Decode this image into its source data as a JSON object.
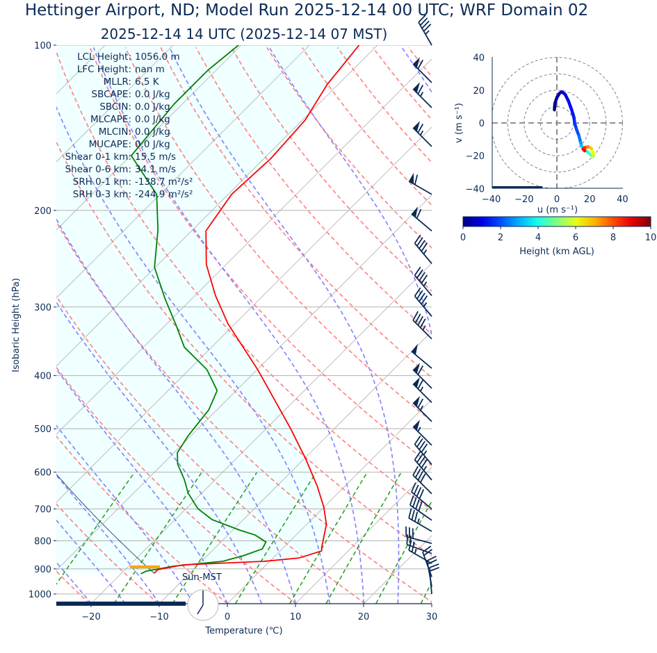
{
  "title": "Hettinger Airport, ND; Model Run 2025-12-14 00 UTC; WRF Domain 02",
  "subtitle": "2025-12-14 14 UTC  (2025-12-14 07 MST)",
  "colors": {
    "text": "#0b2a55",
    "temperature": "#ff0000",
    "dewpoint": "#008000",
    "dry_adiabat": "#ff7f7f",
    "moist_adiabat": "#7f7fff",
    "mixing_ratio": "#2ca02c",
    "fill": "#f0ffff",
    "lcl_marker": "#ffa500",
    "barb": "#0b2a55"
  },
  "stats": [
    {
      "label": "LCL Height:",
      "value": "1056.0 m"
    },
    {
      "label": "LFC Height:",
      "value": "nan m"
    },
    {
      "label": "MLLR:",
      "value": "6.5 K"
    },
    {
      "label": "SBCAPE:",
      "value": "0.0 J/kg"
    },
    {
      "label": "SBCIN:",
      "value": "0.0 J/kg"
    },
    {
      "label": "MLCAPE:",
      "value": "0.0 J/kg"
    },
    {
      "label": "MLCIN:",
      "value": "0.0 J/kg"
    },
    {
      "label": "MUCAPE:",
      "value": "0.0 J/kg"
    },
    {
      "label": "Shear 0-1 km:",
      "value": "15.5 m/s"
    },
    {
      "label": "Shear 0-6 km:",
      "value": "34.1 m/s"
    },
    {
      "label": "SRH 0-1 km:",
      "value": "-138.7 m²/s²"
    },
    {
      "label": "SRH 0-3 km:",
      "value": "-244.9 m²/s²"
    }
  ],
  "clock_label": "Sun-MST",
  "clock_time": "07:00",
  "chart_data": [
    {
      "type": "line",
      "name": "skew-t",
      "xlabel": "Temperature (℃)",
      "ylabel": "Isobaric Height (hPa)",
      "xlim": [
        -25,
        30
      ],
      "ylim": [
        1041,
        100
      ],
      "yscale": "log",
      "xticks": [
        "−20",
        "−10",
        "0",
        "10",
        "20",
        "30"
      ],
      "xtick_values": [
        -20,
        -10,
        0,
        10,
        20,
        30
      ],
      "yticks": [
        100,
        200,
        300,
        400,
        500,
        600,
        700,
        800,
        900,
        1000
      ],
      "grid": true,
      "temperature": {
        "p": [
          100,
          118,
          137,
          161,
          187,
          218,
          251,
          286,
          322,
          391,
          500,
          567,
          637,
          695,
          747,
          823,
          835,
          860,
          872,
          885,
          903,
          917
        ],
        "T": [
          -62.7,
          -61.6,
          -59.6,
          -59.0,
          -59.5,
          -57.9,
          -52.9,
          -47.0,
          -41.0,
          -29.8,
          -16.4,
          -9.8,
          -4.0,
          0.0,
          2.9,
          5.6,
          6.1,
          3.8,
          -0.8,
          -12.2,
          -15.2,
          -15.2
        ]
      },
      "dewpoint": {
        "p": [
          100,
          111,
          128,
          159,
          187,
          217,
          254,
          290,
          326,
          355,
          390,
          426,
          462,
          516,
          553,
          580,
          618,
          655,
          699,
          732,
          765,
          781,
          804,
          828,
          852,
          872,
          890,
          909,
          919
        ],
        "Td": [
          -80.4,
          -81.2,
          -81.2,
          -79.9,
          -70.5,
          -65.1,
          -60.1,
          -53.9,
          -48.1,
          -44.0,
          -37.4,
          -32.8,
          -31.2,
          -30.4,
          -29.5,
          -27.8,
          -24.6,
          -22.0,
          -18.3,
          -14.6,
          -9.0,
          -6.0,
          -3.4,
          -2.9,
          -4.7,
          -6.9,
          -13.4,
          -16.7,
          -17.1
        ]
      },
      "parcel_surface": {
        "p": 917,
        "T": -15.2
      },
      "lcl_marker": {
        "p": 898,
        "T_range": [
          -14,
          -10
        ]
      },
      "wind_barbs": [
        {
          "p": 100,
          "speed_kt": 45,
          "dir": 330
        },
        {
          "p": 117,
          "speed_kt": 60,
          "dir": 315
        },
        {
          "p": 130,
          "speed_kt": 65,
          "dir": 315
        },
        {
          "p": 153,
          "speed_kt": 65,
          "dir": 315
        },
        {
          "p": 187,
          "speed_kt": 60,
          "dir": 300
        },
        {
          "p": 218,
          "speed_kt": 60,
          "dir": 310
        },
        {
          "p": 250,
          "speed_kt": 45,
          "dir": 320
        },
        {
          "p": 286,
          "speed_kt": 45,
          "dir": 320
        },
        {
          "p": 312,
          "speed_kt": 45,
          "dir": 320
        },
        {
          "p": 343,
          "speed_kt": 45,
          "dir": 315
        },
        {
          "p": 388,
          "speed_kt": 50,
          "dir": 310
        },
        {
          "p": 422,
          "speed_kt": 60,
          "dir": 315
        },
        {
          "p": 448,
          "speed_kt": 65,
          "dir": 315
        },
        {
          "p": 485,
          "speed_kt": 65,
          "dir": 315
        },
        {
          "p": 536,
          "speed_kt": 55,
          "dir": 315
        },
        {
          "p": 581,
          "speed_kt": 45,
          "dir": 320
        },
        {
          "p": 620,
          "speed_kt": 45,
          "dir": 320
        },
        {
          "p": 657,
          "speed_kt": 40,
          "dir": 315
        },
        {
          "p": 700,
          "speed_kt": 40,
          "dir": 310
        },
        {
          "p": 734,
          "speed_kt": 40,
          "dir": 305
        },
        {
          "p": 769,
          "speed_kt": 35,
          "dir": 300
        },
        {
          "p": 809,
          "speed_kt": 30,
          "dir": 285
        },
        {
          "p": 844,
          "speed_kt": 25,
          "dir": 290
        },
        {
          "p": 880,
          "speed_kt": 25,
          "dir": 300
        },
        {
          "p": 931,
          "speed_kt": 20,
          "dir": 340
        },
        {
          "p": 970,
          "speed_kt": 20,
          "dir": 350
        },
        {
          "p": 1000,
          "speed_kt": 20,
          "dir": 355
        }
      ]
    },
    {
      "type": "line",
      "name": "hodograph",
      "xlabel": "u (m s⁻¹)",
      "ylabel": "v (m s⁻¹)",
      "xlim": [
        -40,
        40
      ],
      "ylim": [
        -40,
        40
      ],
      "xticks": [
        "−40",
        "−20",
        "0",
        "20",
        "40"
      ],
      "yticks": [
        "40",
        "20",
        "0",
        "−20",
        "−40"
      ],
      "rings": [
        10,
        20,
        30,
        40
      ],
      "u": [
        -1.5,
        -1.2,
        0,
        1.5,
        3,
        5,
        7,
        9,
        10.5,
        10.8,
        12,
        13.5,
        14.5,
        15,
        16,
        18,
        20,
        22,
        22.5,
        21,
        19,
        17,
        16,
        17
      ],
      "v": [
        8,
        12,
        15.5,
        18,
        19,
        17.5,
        13.5,
        8,
        3,
        0,
        -4,
        -8,
        -12,
        -14,
        -15.5,
        -17,
        -19,
        -20.5,
        -19,
        -15.5,
        -14.5,
        -15,
        -16,
        -17
      ],
      "height_km": [
        0,
        0.2,
        0.4,
        0.6,
        0.8,
        1.0,
        1.2,
        1.4,
        1.6,
        1.8,
        2.0,
        2.4,
        2.8,
        3.2,
        3.6,
        4.2,
        4.8,
        5.5,
        6.0,
        6.8,
        7.5,
        8.2,
        8.8,
        9.2
      ],
      "colorbar": {
        "label": "Height (km AGL)",
        "range": [
          0,
          10
        ],
        "ticks": [
          "0",
          "2",
          "4",
          "6",
          "8",
          "10"
        ],
        "colormap": "jet"
      }
    }
  ]
}
